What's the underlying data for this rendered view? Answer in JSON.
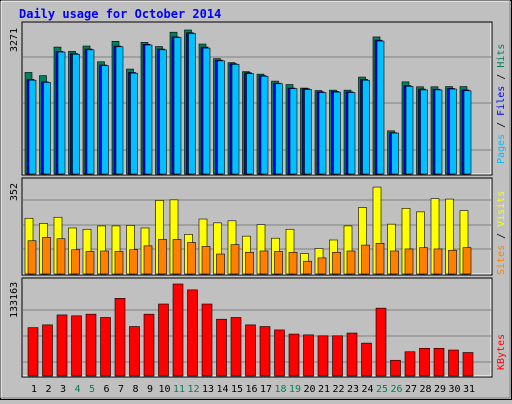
{
  "title": "Daily usage for October 2014",
  "colors": {
    "background": "#c0c0c0",
    "title": "#0000ff",
    "hits": "#00805c",
    "files": "#0000ff",
    "pages": "#00c0ff",
    "visits": "#ffff00",
    "sites": "#ff8000",
    "kbytes": "#ff0000",
    "weekend_label": "#00805c",
    "weekday_label": "#000000",
    "separator": "#000000"
  },
  "chart_data": [
    {
      "type": "bar",
      "panel": "hits-files-pages",
      "y_axis_max_label": "3271",
      "right_label": {
        "pages": "Pages",
        "files": "Files",
        "hits": "Hits",
        "sep": " / "
      },
      "ylim": [
        0,
        3271
      ],
      "categories": [
        "1",
        "2",
        "3",
        "4",
        "5",
        "6",
        "7",
        "8",
        "9",
        "10",
        "11",
        "12",
        "13",
        "14",
        "15",
        "16",
        "17",
        "18",
        "19",
        "20",
        "21",
        "22",
        "23",
        "24",
        "25",
        "26",
        "27",
        "28",
        "29",
        "30",
        "31"
      ],
      "series": [
        {
          "name": "Hits",
          "values": [
            2307,
            2235,
            2883,
            2786,
            2907,
            2549,
            3014,
            2384,
            2991,
            2895,
            3221,
            3271,
            2952,
            2620,
            2530,
            2325,
            2269,
            2110,
            2032,
            1952,
            1896,
            1905,
            1905,
            2202,
            3114,
            981,
            2093,
            1981,
            1981,
            1986,
            1986
          ]
        },
        {
          "name": "Files",
          "values": [
            2150,
            2093,
            2786,
            2739,
            2839,
            2476,
            2907,
            2307,
            2946,
            2839,
            3114,
            3209,
            2883,
            2586,
            2505,
            2301,
            2235,
            2063,
            1952,
            1937,
            1865,
            1877,
            1865,
            2150,
            3040,
            939,
            2010,
            1930,
            1925,
            1944,
            1909
          ]
        },
        {
          "name": "Pages",
          "values": [
            2130,
            2080,
            2770,
            2720,
            2820,
            2460,
            2890,
            2290,
            2930,
            2820,
            3100,
            3190,
            2860,
            2570,
            2490,
            2280,
            2220,
            2050,
            1940,
            1920,
            1850,
            1860,
            1850,
            2130,
            3020,
            930,
            1990,
            1910,
            1910,
            1930,
            1890
          ]
        }
      ]
    },
    {
      "type": "bar",
      "panel": "visits-sites",
      "y_axis_max_label": "352",
      "right_label": {
        "sites": "Sites",
        "visits": "Visits",
        "sep": " / "
      },
      "ylim": [
        0,
        352
      ],
      "categories": [
        "1",
        "2",
        "3",
        "4",
        "5",
        "6",
        "7",
        "8",
        "9",
        "10",
        "11",
        "12",
        "13",
        "14",
        "15",
        "16",
        "17",
        "18",
        "19",
        "20",
        "21",
        "22",
        "23",
        "24",
        "25",
        "26",
        "27",
        "28",
        "29",
        "30",
        "31"
      ],
      "series": [
        {
          "name": "Visits",
          "values": [
            218,
            198,
            222,
            180,
            175,
            188,
            188,
            190,
            180,
            288,
            290,
            155,
            215,
            200,
            208,
            148,
            193,
            140,
            175,
            80,
            100,
            133,
            188,
            260,
            340,
            195,
            257,
            243,
            295,
            293,
            248
          ]
        },
        {
          "name": "Sites",
          "values": [
            130,
            143,
            138,
            95,
            88,
            90,
            88,
            95,
            110,
            135,
            135,
            123,
            108,
            78,
            115,
            85,
            90,
            88,
            85,
            50,
            63,
            85,
            90,
            113,
            120,
            90,
            98,
            103,
            98,
            93,
            103
          ]
        }
      ]
    },
    {
      "type": "bar",
      "panel": "kbytes",
      "y_axis_max_label": "133163",
      "right_label": {
        "kbytes": "KBytes"
      },
      "ylim": [
        0,
        133163
      ],
      "categories": [
        "1",
        "2",
        "3",
        "4",
        "5",
        "6",
        "7",
        "8",
        "9",
        "10",
        "11",
        "12",
        "13",
        "14",
        "15",
        "16",
        "17",
        "18",
        "19",
        "20",
        "21",
        "22",
        "23",
        "24",
        "25",
        "26",
        "27",
        "28",
        "29",
        "30",
        "31"
      ],
      "series": [
        {
          "name": "KBytes",
          "values": [
            70000,
            74000,
            88400,
            87100,
            89500,
            84700,
            112400,
            71600,
            89500,
            104200,
            133163,
            124700,
            104200,
            82200,
            84700,
            74000,
            71600,
            66700,
            60700,
            59500,
            58200,
            58200,
            62200,
            47600,
            98200,
            22800,
            35100,
            40100,
            40100,
            37600,
            34000
          ]
        }
      ]
    }
  ],
  "x_labels": [
    "1",
    "2",
    "3",
    "4",
    "5",
    "6",
    "7",
    "8",
    "9",
    "10",
    "11",
    "12",
    "13",
    "14",
    "15",
    "16",
    "17",
    "18",
    "19",
    "20",
    "21",
    "22",
    "23",
    "24",
    "25",
    "26",
    "27",
    "28",
    "29",
    "30",
    "31"
  ],
  "weekend_days": [
    "4",
    "5",
    "11",
    "12",
    "18",
    "19",
    "25",
    "26"
  ]
}
